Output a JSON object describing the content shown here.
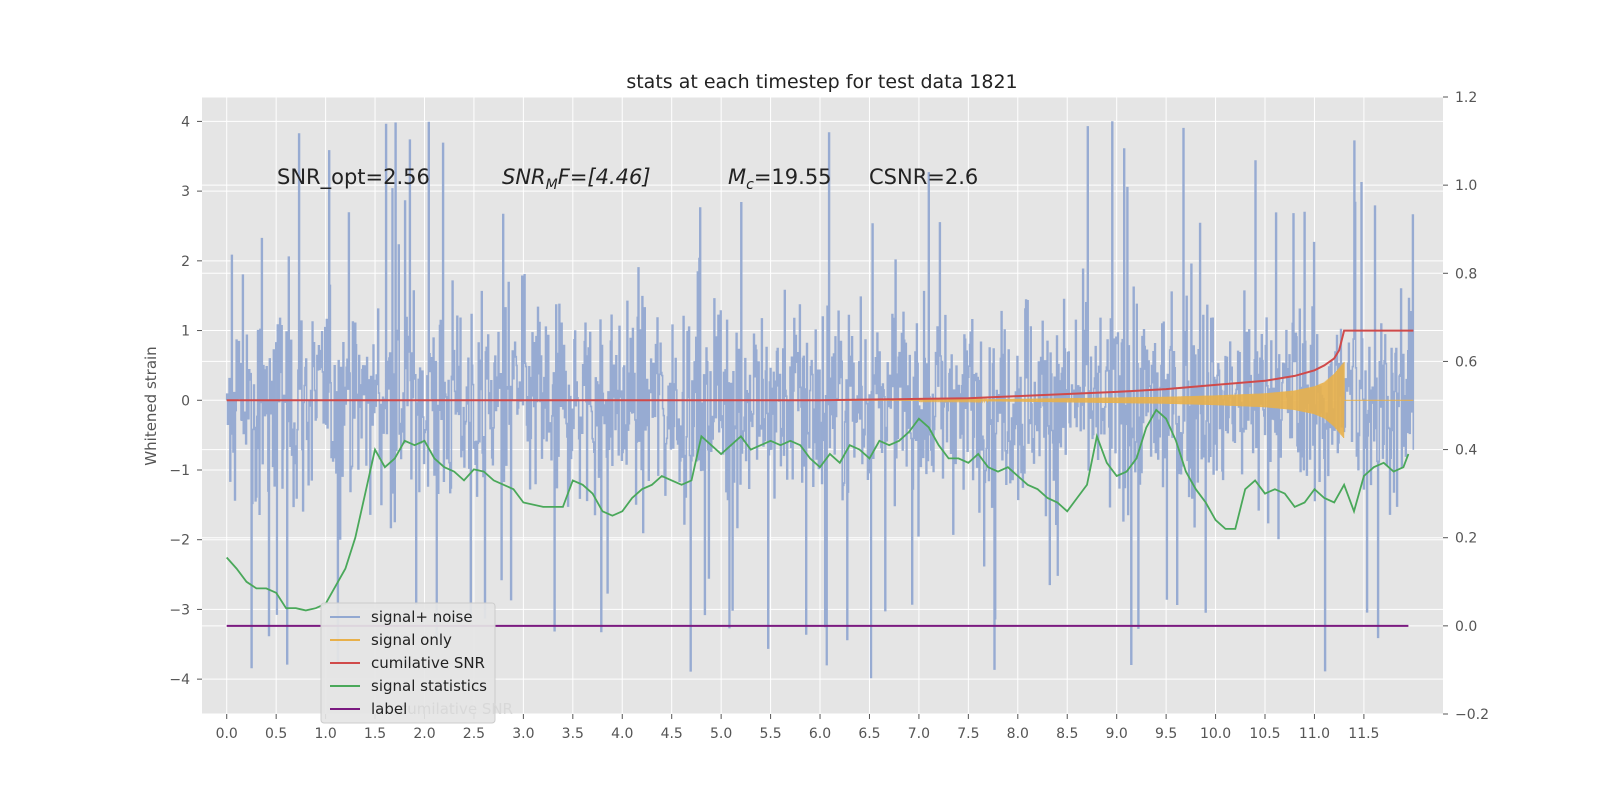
{
  "chart_data": {
    "type": "line",
    "title": "stats at each timestep for test data 1821",
    "ylabel": "Whitened strain",
    "ylabel_right": "",
    "xlim": [
      -0.25,
      12.3
    ],
    "ylim": [
      -4.5,
      4.35
    ],
    "ylim_right": [
      -0.2,
      1.2
    ],
    "grid": true,
    "x_ticks": [
      "0.0",
      "0.5",
      "1.0",
      "1.5",
      "2.0",
      "2.5",
      "3.0",
      "3.5",
      "4.0",
      "4.5",
      "5.0",
      "5.5",
      "6.0",
      "6.5",
      "7.0",
      "7.5",
      "8.0",
      "8.5",
      "9.0",
      "9.5",
      "10.0",
      "10.5",
      "11.0",
      "11.5"
    ],
    "y_ticks": [
      "4",
      "3",
      "2",
      "1",
      "0",
      "−1",
      "−2",
      "−3",
      "−4"
    ],
    "y_ticks_right": [
      "1.2",
      "1.0",
      "0.8",
      "0.6",
      "0.4",
      "0.2",
      "0.0",
      "−0.2"
    ],
    "annotations": {
      "snr_opt": "SNR_opt=2.56",
      "snr_mf_main": "SNR",
      "snr_mf_sub": "M",
      "snr_mf_rest": "F=[4.46]",
      "mc_main": "M",
      "mc_sub": "c",
      "mc_rest": "=19.55",
      "csnr": "CSNR=2.6"
    },
    "legend": {
      "placement": "lower-left",
      "entries": [
        "signal+ noise",
        "signal only",
        "cumilative SNR",
        "signal statistics",
        "label"
      ],
      "ghost_text": "cumilative SNR"
    },
    "series": [
      {
        "name": "signal+ noise",
        "axis": "left",
        "color": "#92a8d1",
        "x_range": [
          0,
          12.0
        ],
        "envelope_typical": [
          -2.0,
          2.0
        ],
        "envelope_extreme": [
          -4.1,
          4.0
        ]
      },
      {
        "name": "signal only",
        "axis": "left",
        "color": "#e8b04a",
        "x": [
          0,
          7.5,
          8.5,
          9.5,
          10.0,
          10.5,
          10.8,
          11.0,
          11.1,
          11.2,
          11.3,
          12.0
        ],
        "amplitude": [
          0,
          0.01,
          0.03,
          0.05,
          0.07,
          0.1,
          0.14,
          0.2,
          0.26,
          0.38,
          0.55,
          0
        ]
      },
      {
        "name": "cumilative SNR",
        "axis": "left",
        "color": "#d04a4a",
        "x": [
          0,
          6.0,
          7.0,
          7.5,
          8.0,
          8.5,
          9.0,
          9.5,
          10.0,
          10.5,
          10.8,
          11.0,
          11.1,
          11.2,
          11.25,
          11.3,
          12.0
        ],
        "y": [
          0,
          0,
          0.02,
          0.03,
          0.06,
          0.09,
          0.12,
          0.16,
          0.22,
          0.28,
          0.35,
          0.43,
          0.5,
          0.6,
          0.72,
          1.0,
          1.0
        ]
      },
      {
        "name": "signal statistics",
        "axis": "right",
        "color": "#4aa85a",
        "x": [
          0,
          0.1,
          0.2,
          0.3,
          0.4,
          0.5,
          0.6,
          0.7,
          0.8,
          0.9,
          1.0,
          1.1,
          1.2,
          1.3,
          1.4,
          1.5,
          1.6,
          1.7,
          1.8,
          1.9,
          2.0,
          2.1,
          2.2,
          2.3,
          2.4,
          2.5,
          2.6,
          2.7,
          2.8,
          2.9,
          3.0,
          3.2,
          3.4,
          3.5,
          3.6,
          3.7,
          3.8,
          3.9,
          4.0,
          4.1,
          4.2,
          4.3,
          4.4,
          4.5,
          4.6,
          4.7,
          4.8,
          4.9,
          5.0,
          5.1,
          5.2,
          5.3,
          5.4,
          5.5,
          5.6,
          5.7,
          5.8,
          5.9,
          6.0,
          6.1,
          6.2,
          6.3,
          6.4,
          6.5,
          6.6,
          6.7,
          6.8,
          6.9,
          7.0,
          7.1,
          7.2,
          7.3,
          7.4,
          7.5,
          7.6,
          7.7,
          7.8,
          7.9,
          8.0,
          8.1,
          8.2,
          8.3,
          8.4,
          8.5,
          8.6,
          8.7,
          8.8,
          8.9,
          9.0,
          9.1,
          9.2,
          9.3,
          9.4,
          9.5,
          9.6,
          9.7,
          9.8,
          9.9,
          10.0,
          10.1,
          10.2,
          10.3,
          10.4,
          10.5,
          10.6,
          10.7,
          10.8,
          10.9,
          11.0,
          11.1,
          11.2,
          11.3,
          11.4,
          11.5,
          11.6,
          11.7,
          11.8,
          11.9,
          11.95
        ],
        "y": [
          0.155,
          0.13,
          0.1,
          0.085,
          0.085,
          0.075,
          0.04,
          0.04,
          0.035,
          0.04,
          0.05,
          0.09,
          0.13,
          0.2,
          0.3,
          0.4,
          0.36,
          0.38,
          0.42,
          0.41,
          0.42,
          0.38,
          0.36,
          0.35,
          0.33,
          0.355,
          0.35,
          0.33,
          0.32,
          0.31,
          0.28,
          0.27,
          0.27,
          0.33,
          0.32,
          0.3,
          0.26,
          0.25,
          0.26,
          0.29,
          0.31,
          0.32,
          0.34,
          0.33,
          0.32,
          0.33,
          0.43,
          0.41,
          0.39,
          0.41,
          0.43,
          0.4,
          0.41,
          0.42,
          0.41,
          0.42,
          0.41,
          0.38,
          0.36,
          0.39,
          0.37,
          0.41,
          0.4,
          0.38,
          0.42,
          0.41,
          0.42,
          0.44,
          0.47,
          0.45,
          0.41,
          0.38,
          0.38,
          0.37,
          0.39,
          0.36,
          0.35,
          0.36,
          0.34,
          0.32,
          0.31,
          0.29,
          0.28,
          0.26,
          0.29,
          0.32,
          0.43,
          0.37,
          0.34,
          0.35,
          0.38,
          0.45,
          0.49,
          0.47,
          0.42,
          0.35,
          0.31,
          0.28,
          0.24,
          0.22,
          0.22,
          0.31,
          0.33,
          0.3,
          0.31,
          0.3,
          0.27,
          0.28,
          0.31,
          0.29,
          0.28,
          0.32,
          0.26,
          0.34,
          0.36,
          0.37,
          0.35,
          0.36,
          0.39
        ]
      },
      {
        "name": "label",
        "axis": "right",
        "color": "#7a1a80",
        "x": [
          0,
          11.95
        ],
        "y": [
          0,
          0
        ]
      }
    ]
  }
}
